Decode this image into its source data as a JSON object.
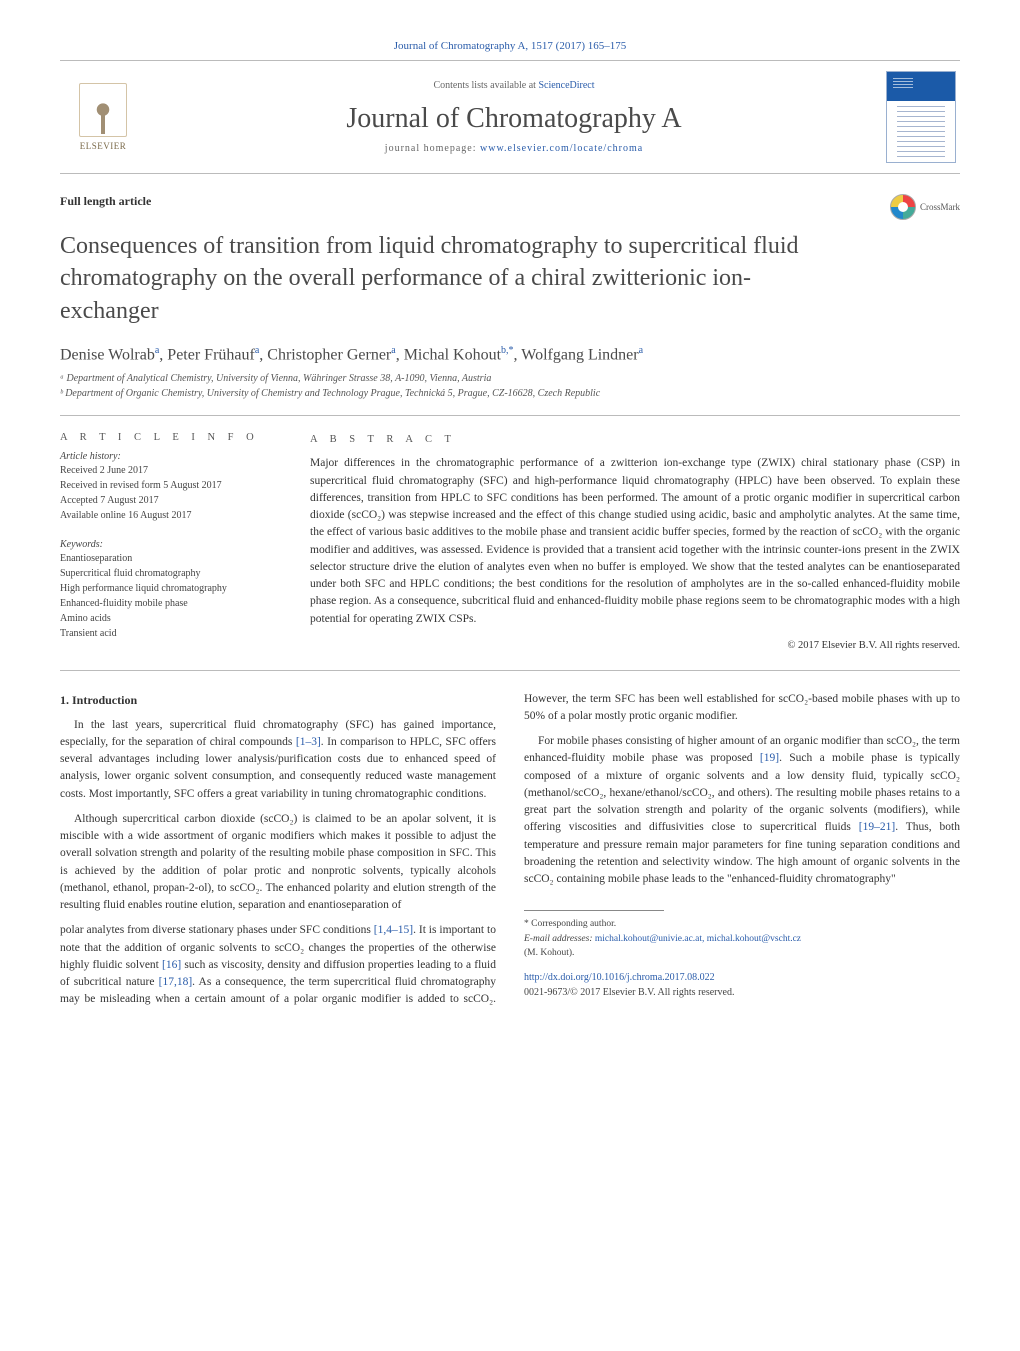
{
  "header": {
    "citation": "Journal of Chromatography A, 1517 (2017) 165–175",
    "contents_line": "Contents lists available at ",
    "sciencedirect": "ScienceDirect",
    "journal_name": "Journal of Chromatography A",
    "homepage_label": "journal homepage: ",
    "homepage_url": "www.elsevier.com/locate/chroma",
    "elsevier": "ELSEVIER"
  },
  "article": {
    "type": "Full length article",
    "crossmark": "CrossMark",
    "title": "Consequences of transition from liquid chromatography to supercritical fluid chromatography on the overall performance of a chiral zwitterionic ion-exchanger",
    "authors_html": "Denise Wolrab<sup>a</sup>, Peter Frühauf<sup>a</sup>, Christopher Gerner<sup>a</sup>, Michal Kohout<sup>b,*</sup>, Wolfgang Lindner<sup>a</sup>",
    "affiliations": [
      "ᵃ Department of Analytical Chemistry, University of Vienna, Währinger Strasse 38, A-1090, Vienna, Austria",
      "ᵇ Department of Organic Chemistry, University of Chemistry and Technology Prague, Technická 5, Prague, CZ-16628, Czech Republic"
    ]
  },
  "info": {
    "section_label": "A R T I C L E   I N F O",
    "history_label": "Article history:",
    "history": [
      "Received 2 June 2017",
      "Received in revised form 5 August 2017",
      "Accepted 7 August 2017",
      "Available online 16 August 2017"
    ],
    "keywords_label": "Keywords:",
    "keywords": [
      "Enantioseparation",
      "Supercritical fluid chromatography",
      "High performance liquid chromatography",
      "Enhanced-fluidity mobile phase",
      "Amino acids",
      "Transient acid"
    ]
  },
  "abstract": {
    "section_label": "A B S T R A C T",
    "text": "Major differences in the chromatographic performance of a zwitterion ion-exchange type (ZWIX) chiral stationary phase (CSP) in supercritical fluid chromatography (SFC) and high-performance liquid chromatography (HPLC) have been observed. To explain these differences, transition from HPLC to SFC conditions has been performed. The amount of a protic organic modifier in supercritical carbon dioxide (scCO₂) was stepwise increased and the effect of this change studied using acidic, basic and ampholytic analytes. At the same time, the effect of various basic additives to the mobile phase and transient acidic buffer species, formed by the reaction of scCO₂ with the organic modifier and additives, was assessed. Evidence is provided that a transient acid together with the intrinsic counter-ions present in the ZWIX selector structure drive the elution of analytes even when no buffer is employed. We show that the tested analytes can be enantioseparated under both SFC and HPLC conditions; the best conditions for the resolution of ampholytes are in the so-called enhanced-fluidity mobile phase region. As a consequence, subcritical fluid and enhanced-fluidity mobile phase regions seem to be chromatographic modes with a high potential for operating ZWIX CSPs.",
    "copyright": "© 2017 Elsevier B.V. All rights reserved."
  },
  "body": {
    "heading": "1.  Introduction",
    "paragraphs": [
      "In the last years, supercritical fluid chromatography (SFC) has gained importance, especially, for the separation of chiral compounds [1–3]. In comparison to HPLC, SFC offers several advantages including lower analysis/purification costs due to enhanced speed of analysis, lower organic solvent consumption, and consequently reduced waste management costs. Most importantly, SFC offers a great variability in tuning chromatographic conditions.",
      "Although supercritical carbon dioxide (scCO₂) is claimed to be an apolar solvent, it is miscible with a wide assortment of organic modifiers which makes it possible to adjust the overall solvation strength and polarity of the resulting mobile phase composition in SFC. This is achieved by the addition of polar protic and nonprotic solvents, typically alcohols (methanol, ethanol, propan-2-ol), to scCO₂. The enhanced polarity and elution strength of the resulting fluid enables routine elution, separation and enantioseparation of",
      "polar analytes from diverse stationary phases under SFC conditions [1,4–15]. It is important to note that the addition of organic solvents to scCO₂ changes the properties of the otherwise highly fluidic solvent [16] such as viscosity, density and diffusion properties leading to a fluid of subcritical nature [17,18]. As a consequence, the term supercritical fluid chromatography may be misleading when a certain amount of a polar organic modifier is added to scCO₂. However, the term SFC has been well established for scCO₂-based mobile phases with up to 50% of a polar mostly protic organic modifier.",
      "For mobile phases consisting of higher amount of an organic modifier than scCO₂, the term enhanced-fluidity mobile phase was proposed [19]. Such a mobile phase is typically composed of a mixture of organic solvents and a low density fluid, typically scCO₂ (methanol/scCO₂, hexane/ethanol/scCO₂, and others). The resulting mobile phases retains to a great part the solvation strength and polarity of the organic solvents (modifiers), while offering viscosities and diffusivities close to supercritical fluids [19–21]. Thus, both temperature and pressure remain major parameters for fine tuning separation conditions and broadening the retention and selectivity window. The high amount of organic solvents in the scCO₂ containing mobile phase leads to the \"enhanced-fluidity chromatography\""
    ],
    "refs": {
      "r1": "[1–3]",
      "r2": "[1,4–15]",
      "r3": "[16]",
      "r4": "[17,18]",
      "r5": "[19]",
      "r6": "[19–21]"
    }
  },
  "footer": {
    "corresponding": "* Corresponding author.",
    "email_label": "E-mail addresses: ",
    "emails": "michal.kohout@univie.ac.at, michal.kohout@vscht.cz",
    "author_paren": "(M. Kohout).",
    "doi": "http://dx.doi.org/10.1016/j.chroma.2017.08.022",
    "issn_line": "0021-9673/© 2017 Elsevier B.V. All rights reserved."
  },
  "colors": {
    "link": "#2a5caa",
    "text": "#333333",
    "muted": "#666666",
    "rule": "#bbbbbb"
  }
}
